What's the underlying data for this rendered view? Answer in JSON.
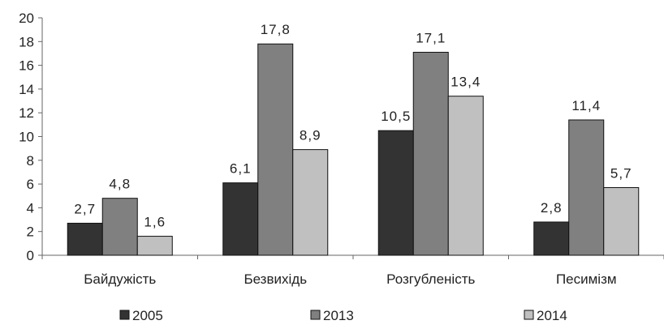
{
  "chart_data": {
    "type": "bar",
    "categories": [
      "Байдужість",
      "Безвихідь",
      "Розгубленість",
      "Песимізм"
    ],
    "series": [
      {
        "name": "2005",
        "values": [
          2.7,
          6.1,
          10.5,
          2.8
        ],
        "labels": [
          "2,7",
          "6,1",
          "10,5",
          "2,8"
        ],
        "color": "#333333"
      },
      {
        "name": "2013",
        "values": [
          4.8,
          17.8,
          17.1,
          11.4
        ],
        "labels": [
          "4,8",
          "17,8",
          "17,1",
          "11,4"
        ],
        "color": "#808080"
      },
      {
        "name": "2014",
        "values": [
          1.6,
          8.9,
          13.4,
          5.7
        ],
        "labels": [
          "1,6",
          "8,9",
          "13,4",
          "5,7"
        ],
        "color": "#c0c0c0"
      }
    ],
    "yticks": [
      "0",
      "2",
      "4",
      "6",
      "8",
      "10",
      "12",
      "14",
      "16",
      "18",
      "20"
    ],
    "ylim": [
      0,
      20
    ],
    "grid": false,
    "legend": "bottom"
  }
}
